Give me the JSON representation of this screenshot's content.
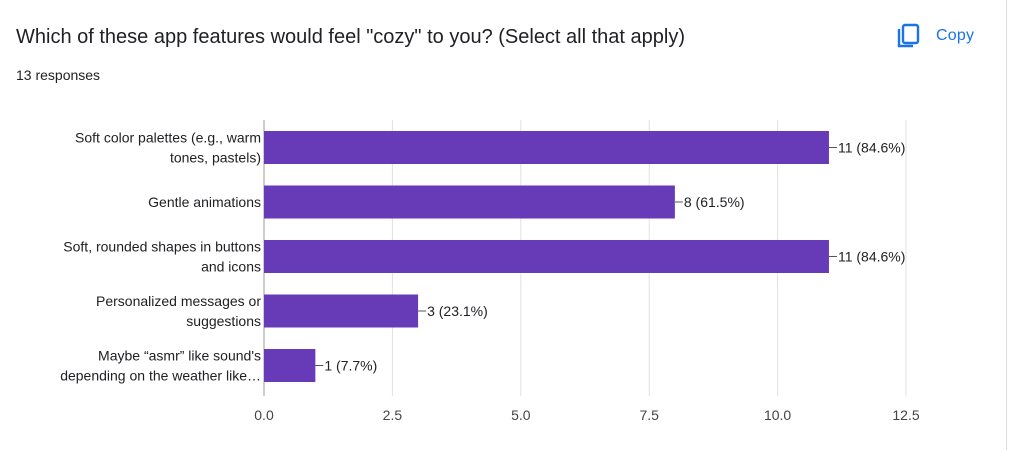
{
  "question": {
    "title": "Which of these app features would feel \"cozy\" to you? (Select all that apply)",
    "responses": "13 responses"
  },
  "toolbar": {
    "copy_label": "Copy",
    "copy_icon": "copy-icon"
  },
  "colors": {
    "bar": "#673ab7",
    "accent": "#1a73e8",
    "text": "#202124",
    "grid": "#e0e0e0"
  },
  "chart_data": {
    "type": "bar",
    "orientation": "horizontal",
    "categories": [
      [
        "Soft color palettes (e.g., warm",
        "tones, pastels)"
      ],
      [
        "Gentle animations"
      ],
      [
        "Soft, rounded shapes in buttons",
        "and icons"
      ],
      [
        "Personalized messages or",
        "suggestions"
      ],
      [
        "Maybe “asmr” like sound's",
        "depending on the weather like…"
      ]
    ],
    "values": [
      11,
      8,
      11,
      3,
      1
    ],
    "data_labels": [
      "11 (84.6%)",
      "8 (61.5%)",
      "11 (84.6%)",
      "3 (23.1%)",
      "1 (7.7%)"
    ],
    "xlim": [
      0,
      12.5
    ],
    "xticks": [
      0,
      2.5,
      5,
      7.5,
      10,
      12.5
    ],
    "xtick_labels": [
      "0.0",
      "2.5",
      "5.0",
      "7.5",
      "10.0",
      "12.5"
    ],
    "grid": true,
    "legend": "none"
  }
}
